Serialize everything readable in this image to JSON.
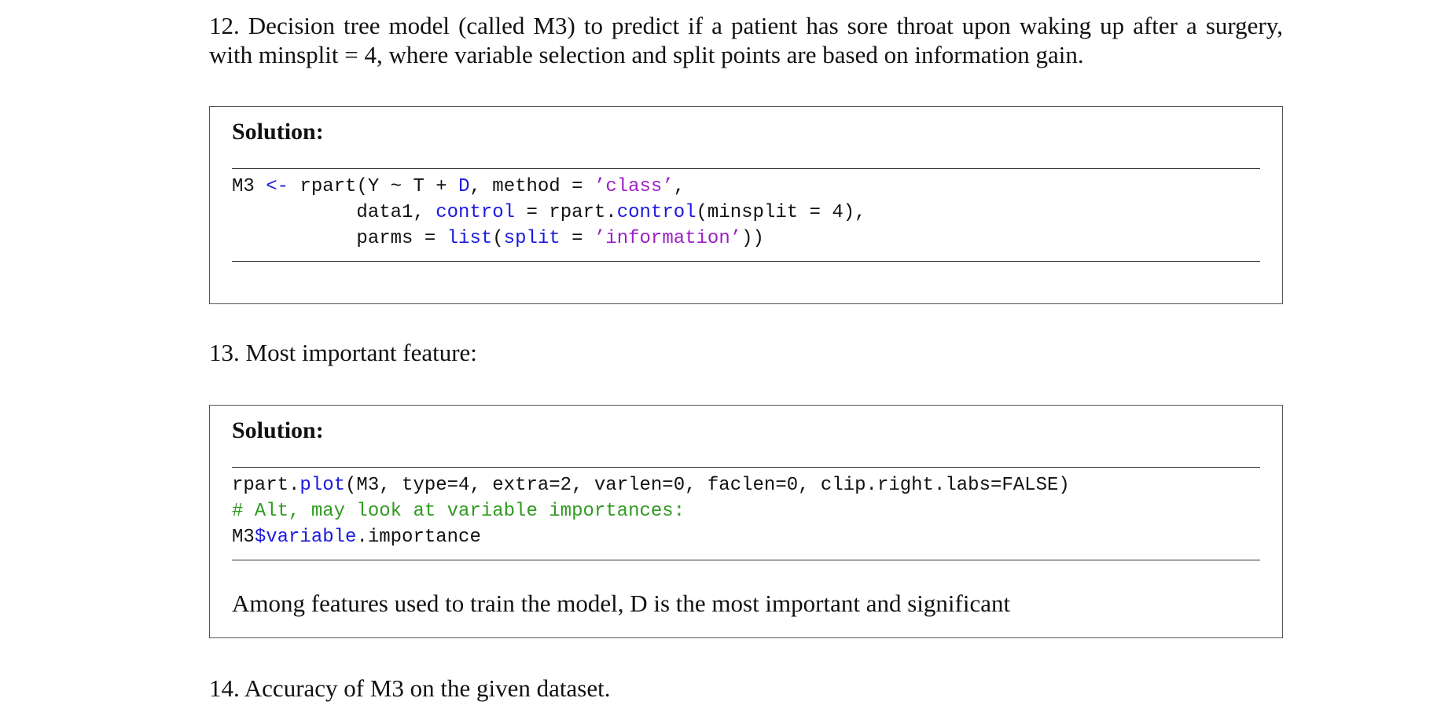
{
  "q12": {
    "text": "12. Decision tree model (called M3) to predict if a patient has sore throat upon waking up after a surgery, with minsplit = 4, where variable selection and split points are based on information gain."
  },
  "solution12": {
    "title": "Solution:",
    "code": [
      [
        {
          "t": "M3 ",
          "c": "plain"
        },
        {
          "t": "<-",
          "c": "kw"
        },
        {
          "t": " rpart(Y ",
          "c": "plain"
        },
        {
          "t": "~",
          "c": "plain"
        },
        {
          "t": " T + ",
          "c": "plain"
        },
        {
          "t": "D",
          "c": "kw"
        },
        {
          "t": ", method = ",
          "c": "plain"
        },
        {
          "t": "’class’",
          "c": "str"
        },
        {
          "t": ",",
          "c": "plain"
        }
      ],
      [
        {
          "t": "           data1, ",
          "c": "plain"
        },
        {
          "t": "control",
          "c": "kw"
        },
        {
          "t": " = rpart.",
          "c": "plain"
        },
        {
          "t": "control",
          "c": "kw"
        },
        {
          "t": "(minsplit = 4),",
          "c": "plain"
        }
      ],
      [
        {
          "t": "           parms = ",
          "c": "plain"
        },
        {
          "t": "list",
          "c": "kw"
        },
        {
          "t": "(",
          "c": "plain"
        },
        {
          "t": "split",
          "c": "kw"
        },
        {
          "t": " = ",
          "c": "plain"
        },
        {
          "t": "’information’",
          "c": "str"
        },
        {
          "t": "))",
          "c": "plain"
        }
      ]
    ]
  },
  "q13": {
    "text": "13. Most important feature:"
  },
  "solution13": {
    "title": "Solution:",
    "code": [
      [
        {
          "t": "rpart.",
          "c": "plain"
        },
        {
          "t": "plot",
          "c": "kw"
        },
        {
          "t": "(M3, type=4, extra=2, varlen=0, faclen=0, clip.right.labs=FALSE)",
          "c": "plain"
        }
      ],
      [
        {
          "t": "# Alt, may look at variable importances:",
          "c": "cm"
        }
      ],
      [
        {
          "t": "M3",
          "c": "plain"
        },
        {
          "t": "$variable",
          "c": "kw"
        },
        {
          "t": ".importance",
          "c": "plain"
        }
      ]
    ],
    "answer": "Among features used to train the model, D is the most important and significant"
  },
  "q14": {
    "text": "14. Accuracy of M3 on the given dataset."
  },
  "colors": {
    "keyword": "#1a1adf",
    "string": "#9b1fc6",
    "comment": "#2f9a1f"
  }
}
